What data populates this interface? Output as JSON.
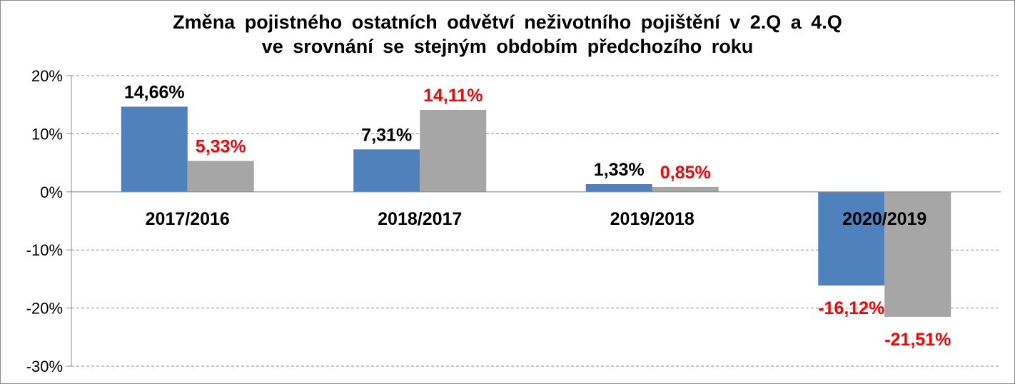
{
  "chart_data": {
    "type": "bar",
    "title_line1": "Změna pojistného ostatních odvětví neživotního pojištění v 2.Q a 4.Q",
    "title_line2": "ve srovnání se stejným obdobím předchozího roku",
    "categories": [
      "2017/2016",
      "2018/2017",
      "2019/2018",
      "2020/2019"
    ],
    "series": [
      {
        "color": "#4f81bd",
        "label_color": "#000000",
        "values": [
          14.66,
          7.31,
          1.33,
          -16.12
        ],
        "labels": [
          "14,66%",
          "7,31%",
          "1,33%",
          "-16,12%"
        ]
      },
      {
        "color": "#a6a6a6",
        "label_color": "#ff0000",
        "values": [
          5.33,
          14.11,
          0.85,
          -21.51
        ],
        "labels": [
          "5,33%",
          "14,11%",
          "0,85%",
          "-21,51%"
        ]
      }
    ],
    "negative_label_color": "#ff0000",
    "ylim": [
      -30,
      20
    ],
    "yticks": [
      20,
      10,
      0,
      -10,
      -20,
      -30
    ],
    "ytick_labels": [
      "20%",
      "10%",
      "0%",
      "-10%",
      "-20%",
      "-30%"
    ],
    "grid": true,
    "legend": "none"
  }
}
